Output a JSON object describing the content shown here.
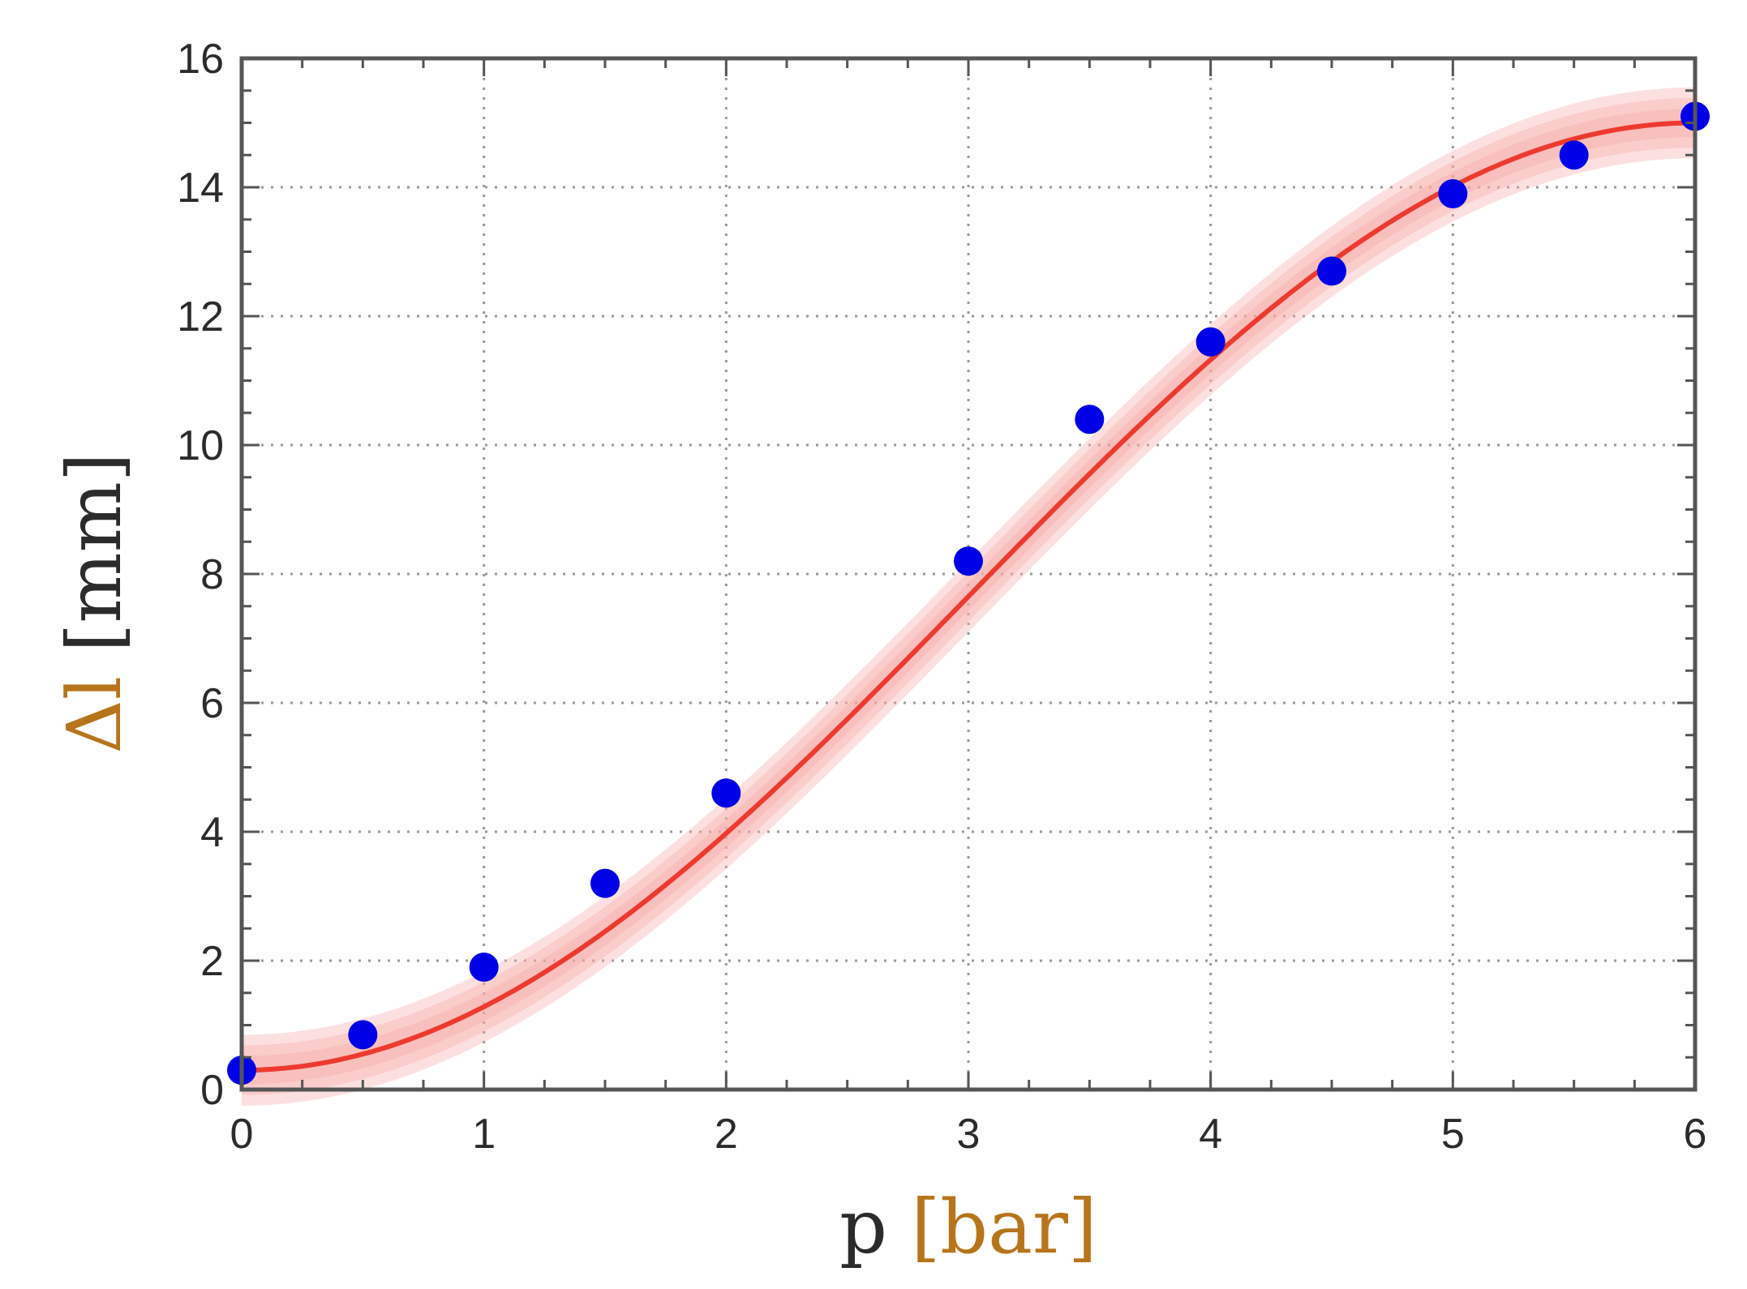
{
  "chart_data": {
    "type": "scatter",
    "xlabel_symbol": "p",
    "xlabel_unit": "[bar]",
    "ylabel_symbol": "Δl",
    "ylabel_unit": "[mm]",
    "xlim": [
      0,
      6
    ],
    "ylim": [
      0,
      16
    ],
    "xticks": [
      0,
      1,
      2,
      3,
      4,
      5,
      6
    ],
    "yticks": [
      0,
      2,
      4,
      6,
      8,
      10,
      12,
      14,
      16
    ],
    "grid": true,
    "points": {
      "x": [
        0,
        0.5,
        1,
        1.5,
        2,
        3,
        3.5,
        4,
        4.5,
        5,
        5.5,
        6
      ],
      "y": [
        0.3,
        0.85,
        1.9,
        3.2,
        4.6,
        8.2,
        10.4,
        11.6,
        12.7,
        13.9,
        14.5,
        15.1
      ]
    },
    "fit_curve": {
      "type": "cosine",
      "A": 7.65,
      "B": 7.35,
      "period": 12,
      "band_halfwidth": 0.55
    },
    "colors": {
      "points": "#0000e6",
      "curve": "#ee3a2e",
      "band": "#f7a6a2",
      "label_symbol": "#b8741a",
      "label_unit": "#2b2b2b",
      "label_bracket": "#3a5f9a"
    }
  }
}
